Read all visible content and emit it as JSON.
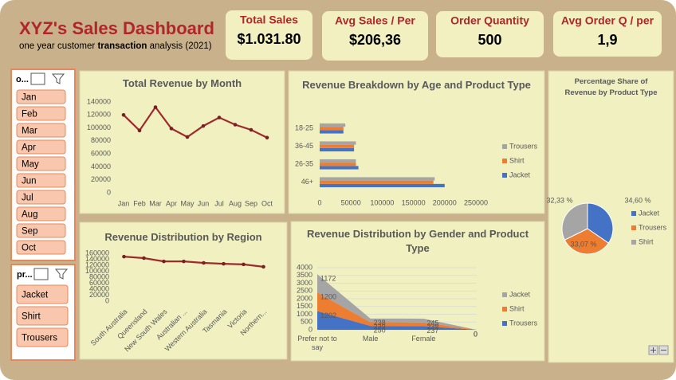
{
  "header": {
    "title": "XYZ's Sales Dashboard",
    "subtitle": [
      "one year customer ",
      "transaction",
      " analysis (2021)"
    ]
  },
  "kpis": [
    {
      "label": "Total Sales",
      "value": "$1.031.80"
    },
    {
      "label": "Avg Sales / Per",
      "value": "$206,36"
    },
    {
      "label": "Order Quantity",
      "value": "500"
    },
    {
      "label": "Avg Order Q / per",
      "value": "1,9"
    }
  ],
  "slicers": [
    {
      "title": "o...",
      "items": [
        "Jan",
        "Feb",
        "Mar",
        "Apr",
        "May",
        "Jun",
        "Jul",
        "Aug",
        "Sep",
        "Oct"
      ]
    },
    {
      "title": "pr...",
      "items": [
        "Jacket",
        "Shirt",
        "Trousers"
      ]
    }
  ],
  "chart_data": [
    {
      "type": "line",
      "title": "Total Revenue by Month",
      "color": "#9e2a2b",
      "categories": [
        "Jan",
        "Feb",
        "Mar",
        "Apr",
        "May",
        "Jun",
        "Jul",
        "Aug",
        "Sep",
        "Oct"
      ],
      "values": [
        120000,
        96000,
        132000,
        99000,
        86000,
        103000,
        116000,
        105000,
        97000,
        85000
      ],
      "ylim": [
        0,
        140000
      ],
      "yticks": [
        0,
        20000,
        40000,
        60000,
        80000,
        100000,
        120000,
        140000
      ],
      "grid": false
    },
    {
      "type": "hbar",
      "title": "Revenue Breakdown by Age and Product Type",
      "categories": [
        "46+",
        "26-35",
        "36-45",
        "18-25"
      ],
      "series": [
        {
          "name": "Jacket",
          "color": "#4472c4",
          "values": [
            200000,
            62000,
            55000,
            38000
          ]
        },
        {
          "name": "Shirt",
          "color": "#ed7d31",
          "values": [
            182000,
            58000,
            55000,
            38000
          ]
        },
        {
          "name": "Trousers",
          "color": "#a5a5a5",
          "values": [
            184000,
            58000,
            58000,
            41000
          ]
        }
      ],
      "xlim": [
        0,
        250000
      ],
      "xticks": [
        0,
        50000,
        100000,
        150000,
        200000,
        250000
      ],
      "grid": false,
      "legend": "right"
    },
    {
      "type": "pie",
      "title": "Percentage Share of Revenue by Product Type",
      "categories": [
        "Jacket",
        "Trousers",
        "Shirt"
      ],
      "values": [
        34.6,
        33.07,
        32.33
      ],
      "value_labels": [
        "34,60 %",
        "33,07 %",
        "32,33 %"
      ],
      "colors": [
        "#4472c4",
        "#ed7d31",
        "#a5a5a5"
      ],
      "legend": "right"
    },
    {
      "type": "line",
      "title": "Revenue Distribution by Region",
      "color": "#9e2a2b",
      "categories": [
        "South Australia",
        "Queensland",
        "New South Wales",
        "Australian ...",
        "Western Australia",
        "Tasmania",
        "Victoria",
        "Northern..."
      ],
      "values": [
        149000,
        144000,
        133000,
        133000,
        128000,
        125000,
        123000,
        115000
      ],
      "ylim": [
        0,
        160000
      ],
      "yticks": [
        0,
        20000,
        40000,
        60000,
        80000,
        100000,
        120000,
        140000,
        160000
      ],
      "grid": false
    },
    {
      "type": "area",
      "title": "Revenue Distribution by Gender and Product Type",
      "stacked": true,
      "categories": [
        "Prefer not to say",
        "Male",
        "Female",
        null
      ],
      "series": [
        {
          "name": "Trousers",
          "color": "#4472c4",
          "values": [
            1202,
            250,
            237,
            0
          ]
        },
        {
          "name": "Shirt",
          "color": "#ed7d31",
          "values": [
            1200,
            239,
            239,
            0
          ]
        },
        {
          "name": "Jacket",
          "color": "#a5a5a5",
          "values": [
            1172,
            238,
            245,
            0
          ]
        }
      ],
      "ylim": [
        0,
        4000
      ],
      "yticks": [
        0,
        500,
        1000,
        1500,
        2000,
        2500,
        3000,
        3500,
        4000
      ],
      "grid": true,
      "legend": "right"
    }
  ]
}
